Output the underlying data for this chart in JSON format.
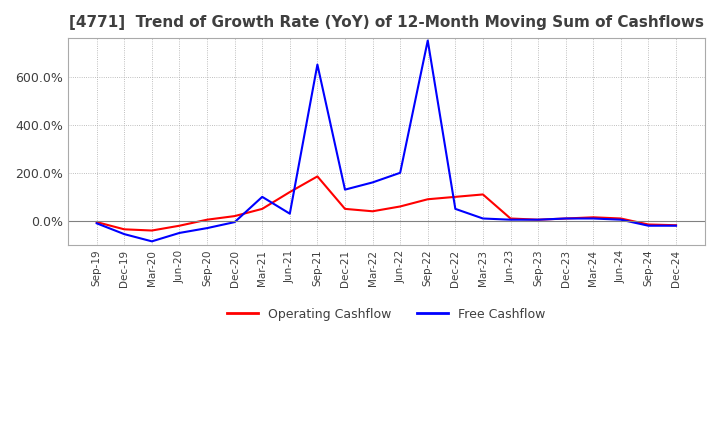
{
  "title": "[4771]  Trend of Growth Rate (YoY) of 12-Month Moving Sum of Cashflows",
  "title_color": "#3f3f3f",
  "background_color": "#ffffff",
  "grid_color": "#aaaaaa",
  "legend_labels": [
    "Operating Cashflow",
    "Free Cashflow"
  ],
  "legend_colors": [
    "#ff0000",
    "#0000ff"
  ],
  "x_labels": [
    "Sep-19",
    "Dec-19",
    "Mar-20",
    "Jun-20",
    "Sep-20",
    "Dec-20",
    "Mar-21",
    "Jun-21",
    "Sep-21",
    "Dec-21",
    "Mar-22",
    "Jun-22",
    "Sep-22",
    "Dec-22",
    "Mar-23",
    "Jun-23",
    "Sep-23",
    "Dec-23",
    "Mar-24",
    "Jun-24",
    "Sep-24",
    "Dec-24"
  ],
  "operating_cashflow": [
    -5,
    -35,
    -40,
    -20,
    5,
    20,
    50,
    120,
    185,
    50,
    40,
    60,
    90,
    100,
    110,
    10,
    5,
    10,
    15,
    10,
    -15,
    -18
  ],
  "free_cashflow": [
    -10,
    -55,
    -85,
    -50,
    -30,
    -5,
    100,
    30,
    650,
    130,
    160,
    200,
    750,
    50,
    10,
    5,
    5,
    10,
    10,
    5,
    -20,
    -20
  ],
  "ylim_min": -100,
  "ylim_max": 760,
  "yticks": [
    0,
    200,
    400,
    600
  ]
}
